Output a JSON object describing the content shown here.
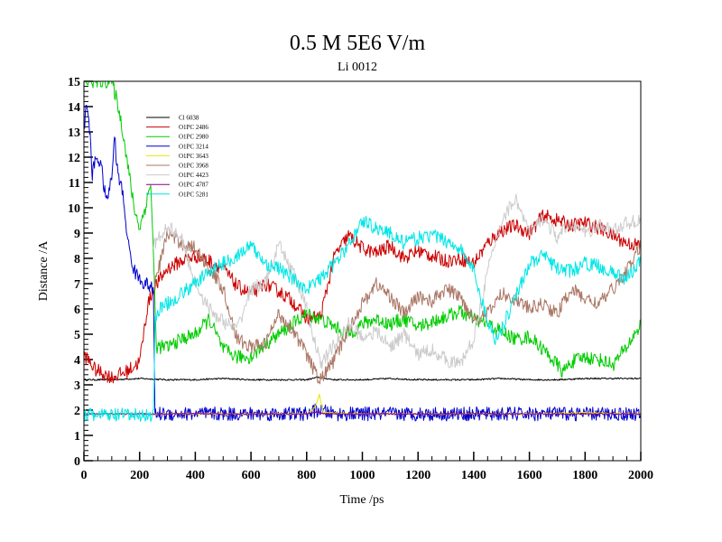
{
  "chart_data": {
    "type": "line",
    "title": "0.5 M 5E6 V/m",
    "subtitle": "Li 0012",
    "xlabel": "Time /ps",
    "ylabel": "Distance /A",
    "xlim": [
      0,
      2000
    ],
    "ylim": [
      0,
      15
    ],
    "x_ticks": [
      0,
      200,
      400,
      600,
      800,
      1000,
      1200,
      1400,
      1600,
      1800,
      2000
    ],
    "y_ticks": [
      0,
      1,
      2,
      3,
      4,
      5,
      6,
      7,
      8,
      9,
      10,
      11,
      12,
      13,
      14,
      15
    ],
    "x_minor_step": 50,
    "y_minor_step": 0.2,
    "grid": false,
    "legend_position": "top-left",
    "series": [
      {
        "name": "Cl 6038",
        "color": "#000000",
        "x": [
          0,
          100,
          200,
          300,
          400,
          500,
          600,
          700,
          800,
          840,
          900,
          1000,
          1100,
          1200,
          1300,
          1400,
          1500,
          1600,
          1700,
          1800,
          1900,
          2000
        ],
        "y": [
          3.2,
          3.2,
          3.25,
          3.2,
          3.2,
          3.25,
          3.2,
          3.2,
          3.2,
          3.3,
          3.2,
          3.2,
          3.25,
          3.2,
          3.2,
          3.2,
          3.25,
          3.2,
          3.2,
          3.25,
          3.25,
          3.25
        ]
      },
      {
        "name": "O1PC 2486",
        "color": "#cc0000",
        "x": [
          0,
          40,
          100,
          150,
          200,
          230,
          250,
          300,
          350,
          400,
          450,
          500,
          550,
          600,
          650,
          700,
          750,
          800,
          850,
          900,
          950,
          1000,
          1050,
          1100,
          1150,
          1200,
          1250,
          1300,
          1350,
          1400,
          1450,
          1500,
          1550,
          1600,
          1650,
          1700,
          1750,
          1800,
          1850,
          1900,
          1950,
          2000
        ],
        "y": [
          4.2,
          3.6,
          3.3,
          3.5,
          3.9,
          6.2,
          6.8,
          7.6,
          7.9,
          8.1,
          7.9,
          7.6,
          6.9,
          6.6,
          7.0,
          6.7,
          6.3,
          5.6,
          5.7,
          8.1,
          8.9,
          8.4,
          8.2,
          8.5,
          8.0,
          8.3,
          8.1,
          7.9,
          8.0,
          7.8,
          8.6,
          9.1,
          9.3,
          9.0,
          9.7,
          9.5,
          9.3,
          9.4,
          9.2,
          8.9,
          8.6,
          8.5
        ]
      },
      {
        "name": "O1PC 2980",
        "color": "#00cc00",
        "x": [
          0,
          100,
          120,
          140,
          160,
          180,
          200,
          220,
          240,
          250,
          260,
          300,
          350,
          400,
          450,
          500,
          550,
          600,
          650,
          700,
          750,
          800,
          850,
          900,
          950,
          1000,
          1050,
          1100,
          1150,
          1200,
          1250,
          1300,
          1350,
          1400,
          1450,
          1500,
          1550,
          1600,
          1650,
          1700,
          1720,
          1750,
          1800,
          1850,
          1900,
          1950,
          2000
        ],
        "y": [
          15,
          15,
          14.2,
          13.0,
          11.5,
          10.0,
          9.2,
          10.0,
          11.0,
          8.0,
          4.5,
          4.5,
          4.8,
          5.0,
          5.6,
          4.4,
          4.1,
          4.1,
          4.6,
          5.0,
          5.4,
          5.8,
          5.6,
          5.3,
          5.0,
          5.4,
          5.6,
          5.4,
          5.6,
          5.3,
          5.5,
          5.7,
          5.9,
          5.6,
          5.4,
          5.1,
          4.8,
          4.9,
          4.4,
          3.8,
          3.5,
          3.9,
          4.1,
          4.0,
          3.8,
          4.5,
          5.4
        ]
      },
      {
        "name": "O1PC 3214",
        "color": "#0000cc",
        "x": [
          0,
          10,
          20,
          30,
          40,
          60,
          80,
          100,
          110,
          120,
          140,
          160,
          180,
          200,
          220,
          240,
          250,
          255,
          300,
          400,
          500,
          600,
          700,
          800,
          840,
          900,
          1000,
          1100,
          1200,
          1300,
          1400,
          1500,
          1600,
          1700,
          1800,
          1900,
          2000
        ],
        "y": [
          13.0,
          14.2,
          13.2,
          11.2,
          12.0,
          11.8,
          10.2,
          11.2,
          12.8,
          11.5,
          10.5,
          8.5,
          7.5,
          7.2,
          7.0,
          6.9,
          6.5,
          1.85,
          1.85,
          1.85,
          1.85,
          1.85,
          1.85,
          1.85,
          2.0,
          1.85,
          1.85,
          1.85,
          1.85,
          1.85,
          1.85,
          1.85,
          1.85,
          1.85,
          1.85,
          1.85,
          1.85
        ]
      },
      {
        "name": "O1PC 3643",
        "color": "#e6e600",
        "x": [
          0,
          200,
          400,
          600,
          800,
          830,
          845,
          860,
          1000,
          1200,
          1400,
          1600,
          1800,
          2000
        ],
        "y": [
          1.85,
          1.85,
          1.85,
          1.85,
          1.85,
          2.1,
          2.6,
          1.9,
          1.85,
          1.85,
          1.85,
          1.85,
          1.9,
          1.85
        ]
      },
      {
        "name": "O1PC 3968",
        "color": "#aa7766",
        "x": [
          250,
          300,
          350,
          400,
          450,
          500,
          550,
          600,
          650,
          700,
          750,
          800,
          830,
          850,
          900,
          950,
          1000,
          1050,
          1100,
          1150,
          1200,
          1250,
          1300,
          1350,
          1400,
          1450,
          1500,
          1550,
          1600,
          1650,
          1700,
          1750,
          1800,
          1850,
          1900,
          1950,
          2000
        ],
        "y": [
          6.8,
          9.0,
          8.6,
          8.4,
          7.6,
          6.8,
          4.8,
          4.5,
          4.6,
          5.8,
          5.2,
          4.2,
          3.5,
          3.2,
          4.0,
          5.2,
          6.2,
          7.0,
          6.5,
          5.8,
          6.5,
          6.3,
          6.8,
          6.5,
          5.6,
          5.8,
          6.6,
          6.4,
          6.0,
          6.2,
          5.8,
          6.8,
          6.4,
          6.2,
          6.8,
          7.5,
          8.5
        ]
      },
      {
        "name": "O1PC 4423",
        "color": "#cccccc",
        "x": [
          250,
          300,
          350,
          400,
          450,
          500,
          550,
          600,
          650,
          700,
          750,
          800,
          850,
          900,
          950,
          1000,
          1050,
          1100,
          1150,
          1200,
          1250,
          1300,
          1350,
          1400,
          1450,
          1500,
          1550,
          1600,
          1650,
          1700,
          1750,
          1800,
          1850,
          1900,
          1950,
          2000
        ],
        "y": [
          8.5,
          9.3,
          8.8,
          7.0,
          6.0,
          5.5,
          5.2,
          6.8,
          7.0,
          8.5,
          7.5,
          6.0,
          3.8,
          4.6,
          5.4,
          4.9,
          5.1,
          4.5,
          5.0,
          4.2,
          4.4,
          4.0,
          3.8,
          4.8,
          7.5,
          9.5,
          10.4,
          9.0,
          9.6,
          8.8,
          9.4,
          9.0,
          9.3,
          9.1,
          9.4,
          9.5
        ]
      },
      {
        "name": "O1PC 4787",
        "color": "#880088",
        "x": [
          0,
          200,
          400,
          600,
          800,
          840,
          860,
          1000,
          1200,
          1400,
          1600,
          1800,
          2000
        ],
        "y": [
          1.85,
          1.85,
          1.85,
          1.85,
          1.85,
          1.95,
          1.85,
          1.85,
          1.85,
          1.85,
          1.85,
          1.85,
          1.85
        ]
      },
      {
        "name": "O1PC 5281",
        "color": "#00e6e6",
        "x": [
          0,
          100,
          200,
          240,
          250,
          255,
          270,
          300,
          350,
          400,
          450,
          500,
          550,
          600,
          650,
          700,
          750,
          800,
          850,
          900,
          950,
          1000,
          1050,
          1100,
          1150,
          1200,
          1250,
          1300,
          1350,
          1400,
          1450,
          1480,
          1500,
          1550,
          1600,
          1650,
          1700,
          1750,
          1800,
          1850,
          1900,
          1950,
          2000
        ],
        "y": [
          1.8,
          1.8,
          1.8,
          1.8,
          1.8,
          5.5,
          6.0,
          6.2,
          6.6,
          7.0,
          7.5,
          7.8,
          8.1,
          8.5,
          7.8,
          7.6,
          7.2,
          6.8,
          7.2,
          7.8,
          8.5,
          9.5,
          9.2,
          9.0,
          8.6,
          8.8,
          8.9,
          8.7,
          8.4,
          7.5,
          5.5,
          4.8,
          5.2,
          6.5,
          7.8,
          8.1,
          7.6,
          7.5,
          7.8,
          7.7,
          7.4,
          7.2,
          8.0
        ]
      }
    ]
  }
}
